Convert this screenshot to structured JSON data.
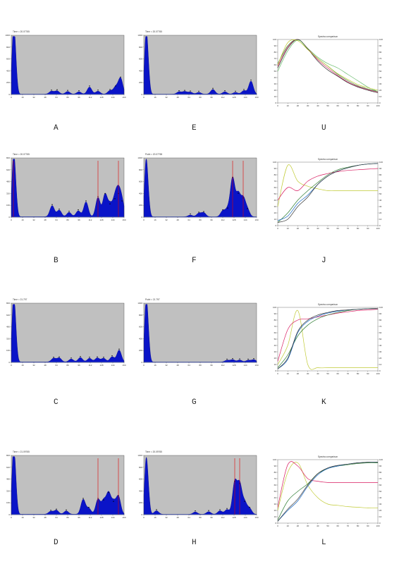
{
  "figure": {
    "panel_letters": [
      "A",
      "E",
      "U",
      "B",
      "F",
      "J",
      "C",
      "G",
      "K",
      "D",
      "H",
      "L"
    ]
  },
  "chart_data": [
    {
      "id": "A",
      "type": "area",
      "title": "Time = 20.07765",
      "x": [
        0,
        16,
        32,
        48,
        64,
        80,
        96,
        112,
        128,
        144,
        160
      ],
      "values": [
        0,
        980,
        40,
        20,
        10,
        60,
        30,
        120,
        50,
        80,
        270
      ],
      "xlim": [
        0,
        160
      ],
      "ylim": [
        0,
        1000
      ],
      "peaks": [
        [
          3,
          980
        ],
        [
          6,
          430
        ],
        [
          57,
          50
        ],
        [
          65,
          55
        ],
        [
          80,
          45
        ],
        [
          96,
          40
        ],
        [
          111,
          120
        ],
        [
          123,
          50
        ],
        [
          140,
          60
        ],
        [
          148,
          120
        ],
        [
          155,
          270
        ]
      ],
      "markers": []
    },
    {
      "id": "E",
      "type": "area",
      "title": "Time = 20.07765",
      "x": [
        0,
        16,
        32,
        48,
        64,
        80,
        96,
        112,
        128,
        144,
        160
      ],
      "values": [
        0,
        900,
        30,
        20,
        10,
        40,
        80,
        30,
        20,
        40,
        220
      ],
      "xlim": [
        0,
        160
      ],
      "ylim": [
        0,
        1000
      ],
      "peaks": [
        [
          3,
          900
        ],
        [
          6,
          380
        ],
        [
          50,
          40
        ],
        [
          58,
          45
        ],
        [
          66,
          35
        ],
        [
          78,
          30
        ],
        [
          98,
          80
        ],
        [
          115,
          40
        ],
        [
          130,
          30
        ],
        [
          142,
          60
        ],
        [
          152,
          220
        ]
      ],
      "markers": []
    },
    {
      "id": "B",
      "type": "area",
      "title": "Time = 20.07765",
      "x": [
        0,
        16,
        32,
        48,
        64,
        80,
        96,
        112,
        128,
        144,
        160
      ],
      "values": [
        0,
        730,
        30,
        60,
        80,
        120,
        80,
        300,
        200,
        260,
        200
      ],
      "xlim": [
        0,
        160
      ],
      "ylim": [
        0,
        800
      ],
      "peaks": [
        [
          3,
          730
        ],
        [
          6,
          300
        ],
        [
          58,
          150
        ],
        [
          68,
          90
        ],
        [
          82,
          60
        ],
        [
          95,
          80
        ],
        [
          106,
          200
        ],
        [
          123,
          260
        ],
        [
          133,
          300
        ],
        [
          140,
          160
        ],
        [
          147,
          230
        ],
        [
          152,
          300
        ],
        [
          157,
          200
        ]
      ],
      "markers": [
        3,
        123,
        152
      ]
    },
    {
      "id": "F",
      "type": "area",
      "title": "Point = 20.07765",
      "x": [
        0,
        16,
        32,
        48,
        64,
        80,
        96,
        112,
        128,
        144,
        160
      ],
      "values": [
        0,
        850,
        20,
        20,
        30,
        60,
        80,
        600,
        320,
        150,
        60
      ],
      "xlim": [
        0,
        160
      ],
      "ylim": [
        0,
        1000
      ],
      "peaks": [
        [
          3,
          850
        ],
        [
          6,
          300
        ],
        [
          66,
          30
        ],
        [
          78,
          60
        ],
        [
          85,
          70
        ],
        [
          112,
          100
        ],
        [
          119,
          130
        ],
        [
          126,
          650
        ],
        [
          134,
          380
        ],
        [
          141,
          300
        ],
        [
          147,
          120
        ]
      ],
      "markers": [
        126,
        141
      ]
    },
    {
      "id": "C",
      "type": "area",
      "title": "Time = 21.797",
      "x": [
        0,
        16,
        32,
        48,
        64,
        80,
        96,
        112,
        128,
        144,
        160
      ],
      "values": [
        0,
        760,
        20,
        30,
        30,
        40,
        40,
        50,
        50,
        60,
        160
      ],
      "xlim": [
        0,
        160
      ],
      "ylim": [
        0,
        800
      ],
      "peaks": [
        [
          3,
          760
        ],
        [
          6,
          320
        ],
        [
          60,
          50
        ],
        [
          68,
          55
        ],
        [
          85,
          40
        ],
        [
          98,
          60
        ],
        [
          111,
          50
        ],
        [
          122,
          55
        ],
        [
          131,
          50
        ],
        [
          143,
          70
        ],
        [
          153,
          160
        ]
      ],
      "markers": []
    },
    {
      "id": "G",
      "type": "area",
      "title": "Point = 21.797",
      "x": [
        0,
        16,
        32,
        48,
        64,
        80,
        96,
        112,
        128,
        144,
        160
      ],
      "values": [
        0,
        900,
        10,
        10,
        10,
        10,
        10,
        20,
        30,
        30,
        40
      ],
      "xlim": [
        0,
        160
      ],
      "ylim": [
        0,
        1000
      ],
      "peaks": [
        [
          3,
          900
        ],
        [
          6,
          400
        ],
        [
          118,
          30
        ],
        [
          126,
          40
        ],
        [
          136,
          35
        ],
        [
          148,
          30
        ],
        [
          156,
          40
        ]
      ],
      "markers": []
    },
    {
      "id": "D",
      "type": "area",
      "title": "Time = 21.09765",
      "x": [
        0,
        16,
        32,
        48,
        64,
        80,
        96,
        112,
        128,
        144,
        160
      ],
      "values": [
        0,
        780,
        20,
        30,
        40,
        50,
        200,
        120,
        250,
        280,
        240
      ],
      "xlim": [
        0,
        160
      ],
      "ylim": [
        0,
        800
      ],
      "peaks": [
        [
          3,
          780
        ],
        [
          6,
          320
        ],
        [
          56,
          40
        ],
        [
          64,
          55
        ],
        [
          78,
          45
        ],
        [
          102,
          200
        ],
        [
          110,
          80
        ],
        [
          123,
          200
        ],
        [
          131,
          180
        ],
        [
          138,
          280
        ],
        [
          145,
          160
        ],
        [
          152,
          240
        ]
      ],
      "markers": [
        123,
        152
      ]
    },
    {
      "id": "H",
      "type": "area",
      "title": "Time = 20.09765",
      "x": [
        0,
        16,
        32,
        48,
        64,
        80,
        96,
        112,
        128,
        144,
        160
      ],
      "values": [
        0,
        800,
        30,
        20,
        20,
        40,
        40,
        320,
        540,
        120,
        60
      ],
      "xlim": [
        0,
        160
      ],
      "ylim": [
        0,
        1000
      ],
      "peaks": [
        [
          3,
          800
        ],
        [
          6,
          350
        ],
        [
          18,
          60
        ],
        [
          73,
          40
        ],
        [
          92,
          45
        ],
        [
          108,
          60
        ],
        [
          118,
          80
        ],
        [
          129,
          540
        ],
        [
          136,
          500
        ],
        [
          143,
          200
        ],
        [
          150,
          100
        ]
      ],
      "markers": [
        129,
        136
      ]
    },
    {
      "id": "U",
      "type": "line",
      "title": "Spectra comparison",
      "x": [
        0,
        10,
        20,
        30,
        40,
        50,
        60,
        70,
        80,
        90,
        100
      ],
      "ylim": [
        0,
        100
      ],
      "series": [
        {
          "color": "#2e7d32",
          "values": [
            62,
            90,
            100,
            85,
            70,
            58,
            45,
            35,
            27,
            22,
            18
          ]
        },
        {
          "color": "#d81b60",
          "values": [
            58,
            88,
            100,
            86,
            68,
            55,
            43,
            33,
            26,
            21,
            17
          ]
        },
        {
          "color": "#333333",
          "values": [
            55,
            86,
            100,
            85,
            66,
            52,
            42,
            32,
            25,
            20,
            16
          ]
        },
        {
          "color": "#66bb6a",
          "values": [
            50,
            82,
            99,
            86,
            72,
            62,
            55,
            45,
            35,
            25,
            18
          ]
        },
        {
          "color": "#c0ca33",
          "values": [
            60,
            95,
            98,
            84,
            70,
            58,
            46,
            37,
            29,
            24,
            20
          ]
        }
      ]
    },
    {
      "id": "J",
      "type": "line",
      "title": "Spectra comparison",
      "x": [
        0,
        10,
        20,
        30,
        40,
        50,
        60,
        70,
        80,
        90,
        100
      ],
      "ylim": [
        0,
        100
      ],
      "series": [
        {
          "color": "#c0ca33",
          "values": [
            30,
            95,
            70,
            62,
            58,
            55,
            55,
            55,
            55,
            55,
            55
          ]
        },
        {
          "color": "#d81b60",
          "values": [
            40,
            60,
            55,
            70,
            78,
            82,
            85,
            87,
            88,
            89,
            90
          ]
        },
        {
          "color": "#2e7d32",
          "values": [
            5,
            20,
            40,
            55,
            68,
            80,
            88,
            92,
            95,
            97,
            98
          ]
        },
        {
          "color": "#1565c0",
          "values": [
            8,
            15,
            35,
            48,
            65,
            78,
            86,
            91,
            95,
            97,
            98
          ]
        },
        {
          "color": "#333333",
          "values": [
            5,
            10,
            30,
            45,
            65,
            78,
            86,
            91,
            95,
            97,
            98
          ]
        }
      ]
    },
    {
      "id": "K",
      "type": "line",
      "title": "Spectra comparison",
      "x": [
        0,
        10,
        20,
        30,
        40,
        50,
        60,
        70,
        80,
        90,
        100
      ],
      "ylim": [
        0,
        100
      ],
      "series": [
        {
          "color": "#c0ca33",
          "values": [
            10,
            40,
            95,
            10,
            5,
            5,
            5,
            5,
            5,
            5,
            5
          ]
        },
        {
          "color": "#d81b60",
          "values": [
            15,
            65,
            80,
            82,
            85,
            88,
            91,
            93,
            95,
            96,
            97
          ]
        },
        {
          "color": "#2e7d32",
          "values": [
            5,
            25,
            55,
            72,
            82,
            88,
            92,
            95,
            97,
            98,
            98
          ]
        },
        {
          "color": "#1565c0",
          "values": [
            3,
            18,
            60,
            78,
            86,
            91,
            94,
            96,
            97,
            98,
            98
          ]
        },
        {
          "color": "#333333",
          "values": [
            3,
            20,
            62,
            80,
            88,
            92,
            95,
            96,
            97,
            98,
            98
          ]
        }
      ]
    },
    {
      "id": "L",
      "type": "line",
      "title": "Spectra comparison",
      "x": [
        0,
        10,
        20,
        30,
        40,
        50,
        60,
        70,
        80,
        90,
        100
      ],
      "ylim": [
        0,
        100
      ],
      "series": [
        {
          "color": "#c0ca33",
          "values": [
            20,
            80,
            95,
            60,
            40,
            30,
            28,
            26,
            25,
            24,
            24
          ]
        },
        {
          "color": "#d81b60",
          "values": [
            25,
            92,
            90,
            70,
            66,
            64,
            64,
            64,
            64,
            64,
            64
          ]
        },
        {
          "color": "#2e7d32",
          "values": [
            5,
            35,
            50,
            62,
            78,
            86,
            90,
            92,
            94,
            95,
            95
          ]
        },
        {
          "color": "#1565c0",
          "values": [
            3,
            20,
            35,
            58,
            76,
            86,
            90,
            93,
            95,
            96,
            96
          ]
        },
        {
          "color": "#333333",
          "values": [
            3,
            22,
            38,
            60,
            78,
            87,
            91,
            93,
            95,
            96,
            96
          ]
        }
      ]
    }
  ]
}
